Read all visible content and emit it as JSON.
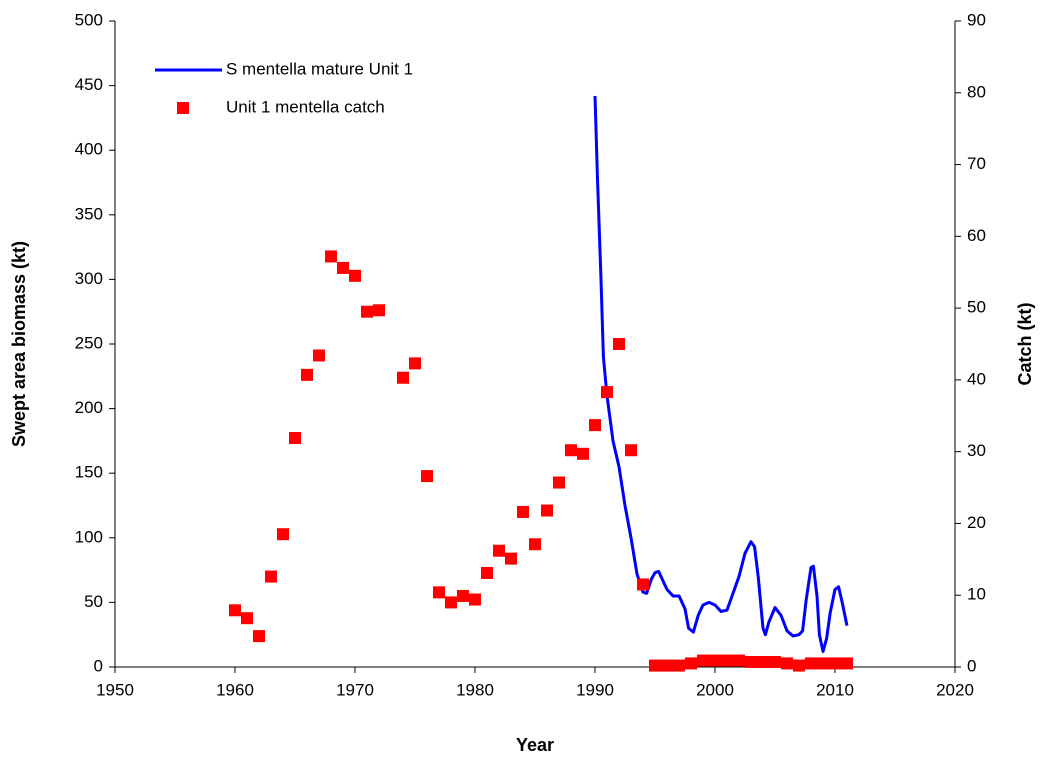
{
  "chart_data": {
    "type": "line-scatter",
    "xlabel": "Year",
    "ylabel": "Swept area biomass (kt)",
    "y2label": "Catch (kt)",
    "xlim": [
      1950,
      2020
    ],
    "xticks": [
      1950,
      1960,
      1970,
      1980,
      1990,
      2000,
      2010,
      2020
    ],
    "ylim": [
      0,
      500
    ],
    "yticks": [
      0,
      50,
      100,
      150,
      200,
      250,
      300,
      350,
      400,
      450,
      500
    ],
    "y2lim": [
      0,
      90
    ],
    "y2ticks": [
      0,
      10,
      20,
      30,
      40,
      50,
      60,
      70,
      80,
      90
    ],
    "series": [
      {
        "name": "S mentella mature Unit 1",
        "type": "line",
        "color": "#0000ff",
        "x": [
          1990,
          1990.2,
          1990.5,
          1990.7,
          1991,
          1991.5,
          1992,
          1992.5,
          1993,
          1993.5,
          1994,
          1994.3,
          1994.7,
          1995,
          1995.3,
          1995.7,
          1996,
          1996.5,
          1997,
          1997.5,
          1997.8,
          1998.2,
          1998.6,
          1999,
          1999.5,
          2000,
          2000.5,
          2001,
          2001.5,
          2002,
          2002.5,
          2003,
          2003.3,
          2003.6,
          2004,
          2004.2,
          2004.5,
          2005,
          2005.5,
          2006,
          2006.5,
          2007,
          2007.3,
          2007.6,
          2008,
          2008.2,
          2008.5,
          2008.7,
          2009,
          2009.3,
          2009.6,
          2010,
          2010.3,
          2010.6,
          2011
        ],
        "values": [
          442,
          380,
          300,
          240,
          210,
          175,
          155,
          125,
          100,
          72,
          58,
          57,
          68,
          73,
          74,
          66,
          60,
          55,
          55,
          45,
          30,
          27,
          40,
          48,
          50,
          48,
          43,
          44,
          57,
          70,
          88,
          97,
          93,
          70,
          30,
          25,
          35,
          46,
          40,
          28,
          24,
          25,
          28,
          52,
          77,
          78,
          55,
          25,
          12,
          22,
          42,
          60,
          62,
          50,
          32
        ]
      },
      {
        "name": "Unit 1 mentella catch",
        "type": "scatter",
        "axis": "y2",
        "color": "#ff0000",
        "x": [
          1960,
          1961,
          1962,
          1963,
          1964,
          1965,
          1966,
          1967,
          1968,
          1969,
          1970,
          1971,
          1972,
          1974,
          1975,
          1976,
          1977,
          1978,
          1979,
          1980,
          1981,
          1982,
          1983,
          1984,
          1985,
          1986,
          1987,
          1988,
          1989,
          1990,
          1991,
          1992,
          1993,
          1994,
          1995,
          1996,
          1997,
          1998,
          1999,
          2000,
          2001,
          2002,
          2003,
          2004,
          2005,
          2006,
          2007,
          2008,
          2009,
          2010,
          2011
        ],
        "values": [
          7.9,
          6.8,
          4.3,
          12.6,
          18.5,
          31.9,
          40.7,
          43.4,
          57.2,
          55.6,
          54.5,
          49.5,
          49.7,
          40.3,
          42.3,
          26.6,
          10.4,
          9.0,
          9.9,
          9.4,
          13.1,
          16.2,
          15.1,
          21.6,
          17.1,
          21.8,
          25.7,
          30.2,
          29.7,
          33.7,
          38.3,
          45,
          30.2,
          11.5,
          0.2,
          0.2,
          0.2,
          0.5,
          0.9,
          0.9,
          0.9,
          0.9,
          0.7,
          0.7,
          0.7,
          0.5,
          0.2,
          0.5,
          0.5,
          0.5,
          0.5
        ]
      }
    ]
  }
}
